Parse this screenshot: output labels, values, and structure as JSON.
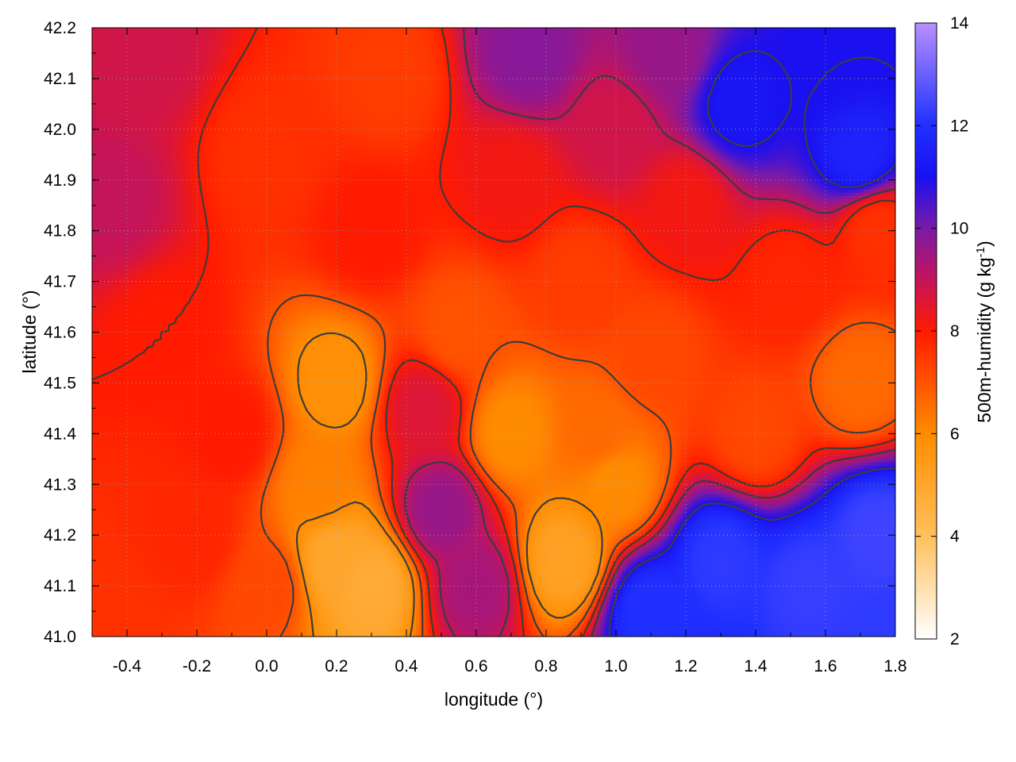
{
  "chart_data": {
    "type": "heatmap",
    "xlabel": "longitude (°)",
    "ylabel": "latitude (°)",
    "colorbar": {
      "label_main": "500m-humidity (g kg",
      "label_sup": "-1",
      "label_end": ")",
      "range": [
        2,
        14
      ],
      "ticks": [
        "2",
        "4",
        "6",
        "8",
        "10",
        "12",
        "14"
      ],
      "tick_values": [
        2,
        4,
        6,
        8,
        10,
        12,
        14
      ],
      "palette": [
        {
          "v": 2,
          "color": "#ffffff"
        },
        {
          "v": 4,
          "color": "#ffc05a"
        },
        {
          "v": 6,
          "color": "#ff8c00"
        },
        {
          "v": 8,
          "color": "#ff1a00"
        },
        {
          "v": 9,
          "color": "#c4145a"
        },
        {
          "v": 10,
          "color": "#7a1aa8"
        },
        {
          "v": 11,
          "color": "#1a10f0"
        },
        {
          "v": 12,
          "color": "#2030ff"
        },
        {
          "v": 13,
          "color": "#6a60ff"
        },
        {
          "v": 14,
          "color": "#b890ff"
        }
      ]
    },
    "xlim": [
      -0.5,
      1.8
    ],
    "ylim": [
      41.0,
      42.2
    ],
    "xticks": [
      "-0.4",
      "-0.2",
      "0.0",
      "0.2",
      "0.4",
      "0.6",
      "0.8",
      "1.0",
      "1.2",
      "1.4",
      "1.6",
      "1.8"
    ],
    "xtick_values": [
      -0.4,
      -0.2,
      0.0,
      0.2,
      0.4,
      0.6,
      0.8,
      1.0,
      1.2,
      1.4,
      1.6,
      1.8
    ],
    "yticks": [
      "41.0",
      "41.1",
      "41.2",
      "41.3",
      "41.4",
      "41.5",
      "41.6",
      "41.7",
      "41.8",
      "41.9",
      "42.0",
      "42.1",
      "42.2"
    ],
    "ytick_values": [
      41.0,
      41.1,
      41.2,
      41.3,
      41.4,
      41.5,
      41.6,
      41.7,
      41.8,
      41.9,
      42.0,
      42.1,
      42.2
    ],
    "grid": true,
    "approx_field_anchors": [
      {
        "lon": -0.45,
        "lat": 41.85,
        "value": 9.0
      },
      {
        "lon": -0.35,
        "lat": 42.15,
        "value": 8.8
      },
      {
        "lon": -0.3,
        "lat": 41.6,
        "value": 8.0
      },
      {
        "lon": -0.2,
        "lat": 41.2,
        "value": 7.8
      },
      {
        "lon": -0.1,
        "lat": 41.4,
        "value": 8.0
      },
      {
        "lon": 0.0,
        "lat": 41.95,
        "value": 7.6
      },
      {
        "lon": 0.0,
        "lat": 41.1,
        "value": 7.2
      },
      {
        "lon": 0.2,
        "lat": 41.5,
        "value": 5.8
      },
      {
        "lon": 0.2,
        "lat": 41.15,
        "value": 5.0
      },
      {
        "lon": 0.3,
        "lat": 41.1,
        "value": 4.8
      },
      {
        "lon": 0.3,
        "lat": 41.8,
        "value": 8.0
      },
      {
        "lon": 0.35,
        "lat": 42.1,
        "value": 7.4
      },
      {
        "lon": 0.5,
        "lat": 41.25,
        "value": 9.6
      },
      {
        "lon": 0.45,
        "lat": 41.45,
        "value": 8.6
      },
      {
        "lon": 0.6,
        "lat": 41.1,
        "value": 9.4
      },
      {
        "lon": 0.55,
        "lat": 41.6,
        "value": 7.0
      },
      {
        "lon": 0.7,
        "lat": 41.4,
        "value": 6.0
      },
      {
        "lon": 0.7,
        "lat": 41.9,
        "value": 8.2
      },
      {
        "lon": 0.75,
        "lat": 42.15,
        "value": 9.8
      },
      {
        "lon": 0.85,
        "lat": 41.15,
        "value": 5.2
      },
      {
        "lon": 0.9,
        "lat": 41.7,
        "value": 7.4
      },
      {
        "lon": 1.0,
        "lat": 41.3,
        "value": 6.0
      },
      {
        "lon": 1.0,
        "lat": 42.0,
        "value": 8.8
      },
      {
        "lon": 1.1,
        "lat": 41.55,
        "value": 7.2
      },
      {
        "lon": 1.1,
        "lat": 41.05,
        "value": 12.0
      },
      {
        "lon": 1.2,
        "lat": 41.85,
        "value": 8.2
      },
      {
        "lon": 1.3,
        "lat": 41.15,
        "value": 12.2
      },
      {
        "lon": 1.35,
        "lat": 42.05,
        "value": 11.2
      },
      {
        "lon": 1.4,
        "lat": 41.4,
        "value": 7.2
      },
      {
        "lon": 1.5,
        "lat": 41.7,
        "value": 7.8
      },
      {
        "lon": 1.55,
        "lat": 41.1,
        "value": 12.3
      },
      {
        "lon": 1.6,
        "lat": 42.15,
        "value": 11.0
      },
      {
        "lon": 1.7,
        "lat": 41.95,
        "value": 11.6
      },
      {
        "lon": 1.7,
        "lat": 41.5,
        "value": 6.6
      },
      {
        "lon": 1.75,
        "lat": 41.2,
        "value": 12.4
      },
      {
        "lon": 1.75,
        "lat": 41.8,
        "value": 7.6
      },
      {
        "lon": -0.45,
        "lat": 41.0,
        "value": 7.6
      },
      {
        "lon": 1.8,
        "lat": 41.0,
        "value": 12.2
      },
      {
        "lon": 1.8,
        "lat": 42.2,
        "value": 11.0
      },
      {
        "lon": 0.95,
        "lat": 41.4,
        "value": 6.6
      },
      {
        "lon": 0.15,
        "lat": 41.3,
        "value": 6.2
      },
      {
        "lon": 1.15,
        "lat": 42.15,
        "value": 9.6
      }
    ]
  },
  "colors": {
    "contour": "#3c3c3c",
    "frame": "#000000",
    "grid": "#a0a0a0",
    "sea": "#2a20ff"
  }
}
